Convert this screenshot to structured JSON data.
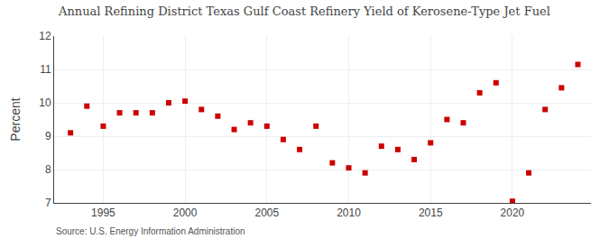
{
  "chart_data": {
    "type": "scatter",
    "title": "Annual Refining District Texas Gulf Coast Refinery Yield of Kerosene-Type Jet Fuel",
    "y_label": "Percent",
    "annotations": [
      "Source: U.S. Energy Information Administration"
    ],
    "x": [
      1993,
      1994,
      1995,
      1996,
      1997,
      1998,
      1999,
      2000,
      2001,
      2002,
      2003,
      2004,
      2005,
      2006,
      2007,
      2008,
      2009,
      2010,
      2011,
      2012,
      2013,
      2014,
      2015,
      2016,
      2017,
      2018,
      2019,
      2020,
      2021,
      2022,
      2023,
      2024
    ],
    "values": [
      9.1,
      9.9,
      9.3,
      9.7,
      9.7,
      9.7,
      10.0,
      10.05,
      9.8,
      9.6,
      9.2,
      9.4,
      9.3,
      8.9,
      8.6,
      9.3,
      8.2,
      8.05,
      7.9,
      8.7,
      8.6,
      8.3,
      8.8,
      9.5,
      9.4,
      10.3,
      10.6,
      7.05,
      7.9,
      9.8,
      10.45,
      11.15
    ],
    "color": "#cc0000",
    "marker": "square",
    "xlim": [
      1992.0,
      2024.8
    ],
    "xticks": [
      1995,
      2000,
      2005,
      2010,
      2015,
      2020
    ],
    "ylim": [
      7,
      12
    ],
    "yticks": [
      7,
      8,
      9,
      10,
      11,
      12
    ],
    "grid": true
  }
}
